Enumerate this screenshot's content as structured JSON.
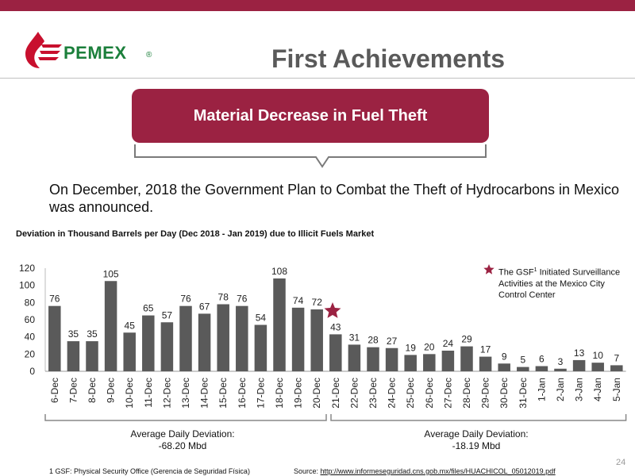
{
  "header": {
    "logo_text": "PEMEX",
    "logo_reg": "®",
    "title": "First Achievements"
  },
  "banner": {
    "text": "Material Decrease in Fuel Theft"
  },
  "intro": "On December, 2018 the Government Plan to Combat the Theft of Hydrocarbons in Mexico was announced.",
  "legend": {
    "pre": "The GSF",
    "sup": "1",
    "post": " Initiated Surveillance Activities at the Mexico City Control Center"
  },
  "averages": {
    "left_label": "Average Daily Deviation:",
    "left_value": "-68.20 Mbd",
    "right_label": "Average Daily Deviation:",
    "right_value": "-18.19 Mbd"
  },
  "footer": {
    "page_number": "24",
    "footnote": "1    GSF: Physical Security Office (Gerencia de Seguridad Física)",
    "source_prefix": "Source: ",
    "source_link": "http://www.informeseguridad.cns.gob.mx/files/HUACHICOL_05012019.pdf"
  },
  "colors": {
    "accent": "#9b2242",
    "bar": "#5a5a5a",
    "brand_green": "#1b7f3b"
  },
  "chart_data": {
    "type": "bar",
    "title": "Deviation in Thousand Barrels per Day (Dec 2018 - Jan 2019) due to Illicit Fuels Market",
    "categories": [
      "6-Dec",
      "7-Dec",
      "8-Dec",
      "9-Dec",
      "10-Dec",
      "11-Dec",
      "12-Dec",
      "13-Dec",
      "14-Dec",
      "15-Dec",
      "16-Dec",
      "17-Dec",
      "18-Dec",
      "19-Dec",
      "20-Dec",
      "21-Dec",
      "22-Dec",
      "23-Dec",
      "24-Dec",
      "25-Dec",
      "26-Dec",
      "27-Dec",
      "28-Dec",
      "29-Dec",
      "30-Dec",
      "31-Dec",
      "1-Jan",
      "2-Jan",
      "3-Jan",
      "4-Jan",
      "5-Jan"
    ],
    "values": [
      76,
      35,
      35,
      105,
      45,
      65,
      57,
      76,
      67,
      78,
      76,
      54,
      108,
      74,
      72,
      43,
      31,
      28,
      27,
      19,
      20,
      24,
      29,
      17,
      9,
      5,
      6,
      3,
      13,
      10,
      7
    ],
    "yticks": [
      "0",
      "20",
      "40",
      "60",
      "80",
      "100",
      "120"
    ],
    "ylim": [
      0,
      120
    ],
    "marker_after_category": "20-Dec",
    "grid": false,
    "legend_position": "top-right"
  }
}
